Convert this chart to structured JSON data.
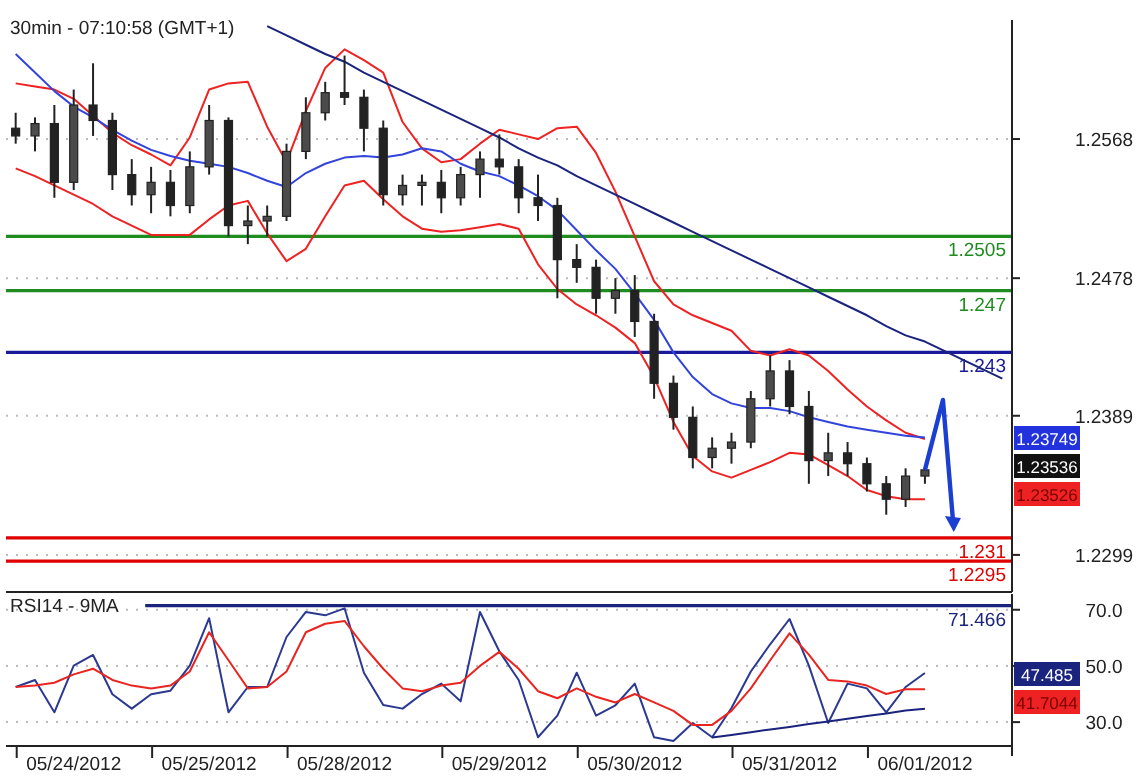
{
  "chart_data": [
    {
      "type": "candlestick",
      "title": "30min - 07:10:58 (GMT+1)",
      "color": "#222222",
      "categories": [
        null,
        null,
        null,
        null,
        null,
        null,
        null,
        null,
        null,
        null,
        null,
        null,
        null,
        null,
        null,
        null,
        null,
        null,
        null,
        null,
        null,
        null,
        null,
        null,
        null,
        null,
        null,
        null,
        null,
        null,
        null,
        null,
        null,
        null,
        null,
        null,
        null,
        null,
        null,
        null,
        null,
        null,
        null,
        null,
        null,
        null,
        null,
        null,
        null,
        null,
        null,
        null
      ],
      "ohlc": [
        [
          1.2575,
          1.2585,
          1.2565,
          1.257
        ],
        [
          1.257,
          1.2582,
          1.256,
          1.2578
        ],
        [
          1.2578,
          1.259,
          1.253,
          1.254
        ],
        [
          1.254,
          1.26,
          1.2535,
          1.259
        ],
        [
          1.259,
          1.2617,
          1.257,
          1.258
        ],
        [
          1.258,
          1.2585,
          1.2535,
          1.2545
        ],
        [
          1.2545,
          1.2555,
          1.2525,
          1.2532
        ],
        [
          1.2532,
          1.255,
          1.252,
          1.254
        ],
        [
          1.254,
          1.2548,
          1.2518,
          1.2525
        ],
        [
          1.2525,
          1.256,
          1.252,
          1.255
        ],
        [
          1.255,
          1.259,
          1.2545,
          1.258
        ],
        [
          1.258,
          1.2582,
          1.2505,
          1.2512
        ],
        [
          1.2512,
          1.2525,
          1.25,
          1.2515
        ],
        [
          1.2515,
          1.2525,
          1.2505,
          1.2518
        ],
        [
          1.2518,
          1.2565,
          1.2515,
          1.256
        ],
        [
          1.256,
          1.2595,
          1.2555,
          1.2585
        ],
        [
          1.2585,
          1.2605,
          1.258,
          1.2598
        ],
        [
          1.2598,
          1.2622,
          1.259,
          1.2595
        ],
        [
          1.2595,
          1.26,
          1.256,
          1.2575
        ],
        [
          1.2575,
          1.258,
          1.2525,
          1.2532
        ],
        [
          1.2532,
          1.2545,
          1.2525,
          1.2538
        ],
        [
          1.2538,
          1.2545,
          1.2525,
          1.254
        ],
        [
          1.254,
          1.2548,
          1.252,
          1.253
        ],
        [
          1.253,
          1.255,
          1.2525,
          1.2545
        ],
        [
          1.2545,
          1.256,
          1.253,
          1.2555
        ],
        [
          1.2555,
          1.2571,
          1.2545,
          1.255
        ],
        [
          1.255,
          1.2555,
          1.252,
          1.253
        ],
        [
          1.253,
          1.2545,
          1.2515,
          1.2525
        ],
        [
          1.2525,
          1.253,
          1.2465,
          1.249
        ],
        [
          1.249,
          1.25,
          1.2475,
          1.2485
        ],
        [
          1.2485,
          1.249,
          1.2455,
          1.2465
        ],
        [
          1.2465,
          1.2478,
          1.2455,
          1.247
        ],
        [
          1.247,
          1.248,
          1.244,
          1.245
        ],
        [
          1.245,
          1.2455,
          1.24,
          1.241
        ],
        [
          1.241,
          1.2415,
          1.238,
          1.2388
        ],
        [
          1.2388,
          1.2395,
          1.2355,
          1.2362
        ],
        [
          1.2362,
          1.2375,
          1.2355,
          1.2368
        ],
        [
          1.2368,
          1.2378,
          1.2358,
          1.2372
        ],
        [
          1.2372,
          1.2405,
          1.2368,
          1.24
        ],
        [
          1.24,
          1.2428,
          1.2395,
          1.2418
        ],
        [
          1.2418,
          1.2425,
          1.239,
          1.2395
        ],
        [
          1.2395,
          1.2405,
          1.2345,
          1.236
        ],
        [
          1.236,
          1.2378,
          1.235,
          1.2365
        ],
        [
          1.2365,
          1.2372,
          1.235,
          1.2358
        ],
        [
          1.2358,
          1.2362,
          1.234,
          1.2345
        ],
        [
          1.2345,
          1.235,
          1.2325,
          1.2335
        ],
        [
          1.2335,
          1.2355,
          1.233,
          1.235
        ],
        [
          1.235,
          1.2356,
          1.2345,
          1.2354
        ],
        null,
        null,
        null,
        null
      ],
      "series": [
        {
          "type": "line",
          "color": "#ee2222",
          "values": [
            1.2604,
            1.2602,
            1.26,
            1.2594,
            1.2583,
            1.2572,
            1.2564,
            1.2558,
            1.2551,
            1.2569,
            1.26,
            1.2604,
            1.2605,
            1.2576,
            1.2553,
            1.2586,
            1.2614,
            1.2626,
            1.2619,
            1.2611,
            1.2579,
            1.2562,
            1.2553,
            1.2555,
            1.2565,
            1.2574,
            1.2571,
            1.2568,
            1.2575,
            1.2576,
            1.2559,
            1.2534,
            1.2505,
            1.2476,
            1.2461,
            1.2454,
            1.2449,
            1.2444,
            1.2431,
            1.2428,
            1.2432,
            1.2428,
            1.2418,
            1.2406,
            1.2395,
            1.2386,
            1.2378,
            1.2374,
            null,
            null,
            null,
            null
          ]
        },
        {
          "type": "line",
          "color": "#ee2222",
          "values": [
            1.2549,
            1.2544,
            1.2538,
            1.2532,
            1.2526,
            1.2518,
            1.2512,
            1.2506,
            1.2506,
            1.2506,
            1.2516,
            1.2525,
            1.2528,
            1.2507,
            1.2489,
            1.2497,
            1.2518,
            1.2538,
            1.2541,
            1.2529,
            1.2518,
            1.251,
            1.2508,
            1.2509,
            1.2511,
            1.2513,
            1.251,
            1.2487,
            1.2471,
            1.2461,
            1.2454,
            1.2446,
            1.2436,
            1.2414,
            1.2385,
            1.2363,
            1.2353,
            1.2349,
            1.2354,
            1.2359,
            1.2365,
            1.2364,
            1.2357,
            1.235,
            1.2341,
            1.2337,
            1.2335,
            1.2335,
            null,
            null,
            null,
            null
          ]
        },
        {
          "type": "line",
          "color": "#3344dd",
          "values": [
            1.2623,
            1.2611,
            1.2599,
            1.2589,
            1.2582,
            1.2574,
            1.2567,
            1.2561,
            1.2557,
            1.2554,
            1.2552,
            1.255,
            1.2546,
            1.2541,
            1.2537,
            1.2546,
            1.2552,
            1.2556,
            1.2557,
            1.2556,
            1.2558,
            1.2562,
            1.256,
            1.2552,
            1.2547,
            1.2544,
            1.2538,
            1.2531,
            1.2522,
            1.2509,
            1.2496,
            1.2484,
            1.2468,
            1.2451,
            1.243,
            1.2414,
            1.2403,
            1.2397,
            1.2394,
            1.2394,
            1.2392,
            1.2388,
            1.2385,
            1.2382,
            1.238,
            1.2378,
            1.2376,
            1.2375,
            null,
            null,
            null,
            null
          ]
        },
        {
          "type": "line",
          "color": "#1a237e",
          "values": [
            null,
            null,
            null,
            null,
            null,
            null,
            null,
            null,
            null,
            null,
            null,
            null,
            null,
            1.2641,
            1.2635,
            1.2629,
            1.2623,
            1.2618,
            1.2611,
            1.2605,
            1.2599,
            1.2593,
            1.2587,
            1.2581,
            1.2575,
            1.2569,
            1.2562,
            1.2556,
            1.2551,
            1.2544,
            1.2538,
            1.2532,
            1.2526,
            1.252,
            1.2514,
            1.2508,
            1.2502,
            1.2496,
            1.249,
            1.2484,
            1.2478,
            1.2472,
            1.2466,
            1.246,
            1.2454,
            1.2447,
            1.2441,
            1.2437,
            1.2431,
            1.2425,
            1.2419,
            1.2413
          ]
        }
      ],
      "ref_lines": [
        {
          "axis": "y",
          "value": 1.2505,
          "label": "1.2505",
          "color": "#1e8c1e"
        },
        {
          "axis": "y",
          "value": 1.247,
          "label": "1.247",
          "color": "#1e8c1e"
        },
        {
          "axis": "y",
          "value": 1.243,
          "label": "1.243",
          "color": "#1a1a9a"
        },
        {
          "axis": "y",
          "value": 1.231,
          "label": "1.231",
          "color": "#e00000"
        },
        {
          "axis": "y",
          "value": 1.2295,
          "label": "1.2295",
          "color": "#e00000"
        }
      ],
      "annotations": [
        "1.23749",
        "1.23536",
        "1.23526"
      ],
      "ylim": [
        1.2275,
        1.2645
      ],
      "yticks": [
        1.2568,
        1.2478,
        1.2389,
        1.2299
      ],
      "grid": "y",
      "tick_labels": "y"
    },
    {
      "type": "line",
      "title": "RSI14 - 9MA",
      "categories": [
        null,
        null,
        null,
        "05/24/2012",
        null,
        null,
        null,
        null,
        null,
        null,
        "05/25/2012",
        null,
        null,
        null,
        null,
        null,
        null,
        "05/28/2012",
        null,
        null,
        null,
        null,
        null,
        null,
        null,
        "05/29/2012",
        null,
        null,
        null,
        null,
        null,
        null,
        "05/30/2012",
        null,
        null,
        null,
        null,
        null,
        null,
        null,
        "05/31/2012",
        null,
        null,
        null,
        null,
        null,
        null,
        "06/01/2012",
        null,
        null,
        null,
        null
      ],
      "series": [
        {
          "color": "#2b3990",
          "values": [
            42.5,
            45,
            33.5,
            50.1,
            53.9,
            39.9,
            34.8,
            39.9,
            41.2,
            50.1,
            67,
            33.5,
            42.5,
            42.5,
            60.3,
            69.2,
            68,
            70.5,
            47.6,
            36.1,
            34.8,
            40,
            43.7,
            37.4,
            69.2,
            55.2,
            45,
            24.6,
            32.3,
            47.6,
            32.3,
            36,
            43.7,
            24.6,
            23.3,
            29.7,
            24.6,
            35,
            48,
            57.7,
            66.7,
            50.1,
            29.7,
            43.7,
            42,
            33.5,
            42.5,
            47.5,
            null,
            null,
            null,
            null
          ]
        },
        {
          "color": "#e8251f",
          "values": [
            42.5,
            43,
            44,
            47,
            49,
            45,
            43,
            42,
            43,
            48,
            62,
            52,
            42,
            42.5,
            48,
            62,
            65,
            66,
            57,
            49,
            42,
            41,
            43,
            44,
            50,
            55,
            49,
            41,
            38.5,
            42,
            39,
            37,
            40,
            37,
            34,
            29,
            29,
            34,
            42,
            52,
            61.6,
            54,
            45,
            44.5,
            43,
            40,
            41.7,
            41.7,
            null,
            null,
            null,
            null
          ]
        },
        {
          "color": "#1a237e",
          "values": [
            null,
            null,
            null,
            null,
            null,
            null,
            null,
            null,
            null,
            null,
            null,
            null,
            null,
            null,
            null,
            null,
            null,
            null,
            null,
            null,
            null,
            null,
            null,
            null,
            null,
            null,
            null,
            null,
            null,
            null,
            null,
            null,
            null,
            null,
            null,
            null,
            24.5,
            25.4,
            26.4,
            27.4,
            28.3,
            29.3,
            30.2,
            31.2,
            32.2,
            33.1,
            34.1,
            34.8,
            null,
            null,
            null,
            null
          ]
        }
      ],
      "ref_lines": [
        {
          "axis": "y",
          "value": 71.466,
          "label": "71.466",
          "color": "#1a237e"
        }
      ],
      "annotations": [
        "47.485",
        "41.7044"
      ],
      "ylim": [
        21.5,
        75.6
      ],
      "yticks": [
        {
          "value": 70,
          "label": "70.0"
        },
        {
          "value": 50,
          "label": "50.0"
        },
        {
          "value": 30,
          "label": "30.0"
        }
      ],
      "grid": "y"
    }
  ]
}
